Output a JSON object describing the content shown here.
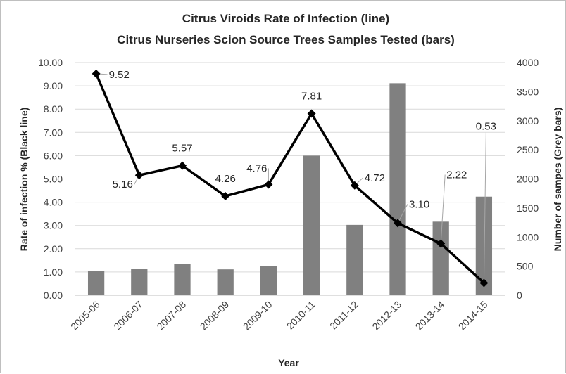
{
  "chart_data": {
    "type": "bar+line",
    "title": "Citrus Viroids Rate of Infection (line)",
    "subtitle": "Citrus Nurseries Scion Source Trees Samples Tested (bars)",
    "xlabel": "Year",
    "ylabel_left": "Rate of infection %  (Black line)",
    "ylabel_right": "Number of sampes (Grey bars)",
    "categories": [
      "2005-06",
      "2006-07",
      "2007-08",
      "2008-09",
      "2009-10",
      "2010-11",
      "2011-12",
      "2012-13",
      "2013-14",
      "2014-15"
    ],
    "ylim_left": [
      0,
      10
    ],
    "yticks_left": [
      "0.00",
      "1.00",
      "2.00",
      "3.00",
      "4.00",
      "5.00",
      "6.00",
      "7.00",
      "8.00",
      "9.00",
      "10.00"
    ],
    "ylim_right": [
      0,
      4000
    ],
    "yticks_right": [
      "0",
      "500",
      "1000",
      "1500",
      "2000",
      "2500",
      "3000",
      "3500",
      "4000"
    ],
    "grid": true,
    "series": [
      {
        "kind": "bar",
        "axis": "right",
        "color": "#808080",
        "values": [
          420,
          450,
          535,
          445,
          505,
          2400,
          1210,
          3645,
          1265,
          1695
        ]
      },
      {
        "kind": "line",
        "axis": "left",
        "color": "#000000",
        "marker": "diamond",
        "values": [
          9.52,
          5.16,
          5.57,
          4.26,
          4.76,
          7.81,
          4.72,
          3.1,
          2.22,
          0.53
        ],
        "labels": [
          "9.52",
          "5.16",
          "5.57",
          "4.26",
          "4.76",
          "7.81",
          "4.72",
          "3.10",
          "2.22",
          "0.53"
        ]
      }
    ]
  }
}
